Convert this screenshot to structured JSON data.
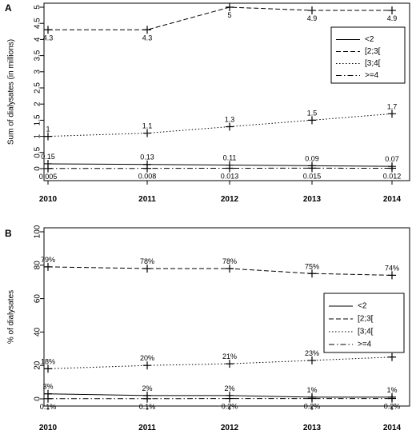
{
  "chart_data": [
    {
      "panel": "A",
      "type": "line",
      "xlabel": "",
      "ylabel": "Sum of dialysates (in millions)",
      "x": [
        "2010",
        "2011",
        "2012",
        "2013",
        "2014"
      ],
      "yticks": [
        "0",
        "0.5",
        "1",
        "1.5",
        "2",
        "2.5",
        "3",
        "3.5",
        "4",
        "4.5",
        "5"
      ],
      "ylim": [
        0,
        5
      ],
      "legend_position": "top-right",
      "series": [
        {
          "name": "<2",
          "dash": "solid",
          "values": [
            0.15,
            0.13,
            0.11,
            0.09,
            0.07
          ],
          "labels": [
            "0.15",
            "0.13",
            "0.11",
            "0.09",
            "0.07"
          ],
          "label_pos": "above"
        },
        {
          "name": "[2;3[",
          "dash": "dashed",
          "values": [
            4.3,
            4.3,
            5,
            4.9,
            4.9
          ],
          "labels": [
            "4.3",
            "4.3",
            "5",
            "4.9",
            "4.9"
          ],
          "label_pos": "below"
        },
        {
          "name": "[3;4[",
          "dash": "dotted",
          "values": [
            1,
            1.1,
            1.3,
            1.5,
            1.7
          ],
          "labels": [
            "1",
            "1.1",
            "1.3",
            "1.5",
            "1.7"
          ],
          "label_pos": "above"
        },
        {
          "name": ">=4",
          "dash": "dotdash",
          "values": [
            0.005,
            0.008,
            0.013,
            0.015,
            0.012
          ],
          "labels": [
            "0.005",
            "0.008",
            "0.013",
            "0.015",
            "0.012"
          ],
          "label_pos": "below"
        }
      ]
    },
    {
      "panel": "B",
      "type": "line",
      "xlabel": "",
      "ylabel": "% of dialysates",
      "x": [
        "2010",
        "2011",
        "2012",
        "2013",
        "2014"
      ],
      "yticks": [
        "0",
        "20",
        "40",
        "60",
        "80",
        "100"
      ],
      "ylim": [
        0,
        100
      ],
      "legend_position": "middle-right",
      "series": [
        {
          "name": "<2",
          "dash": "solid",
          "values": [
            3,
            2,
            2,
            1,
            1
          ],
          "labels": [
            "3%",
            "2%",
            "2%",
            "1%",
            "1%"
          ],
          "label_pos": "above"
        },
        {
          "name": "[2;3[",
          "dash": "dashed",
          "values": [
            79,
            78,
            78,
            75,
            74
          ],
          "labels": [
            "79%",
            "78%",
            "78%",
            "75%",
            "74%"
          ],
          "label_pos": "above"
        },
        {
          "name": "[3;4[",
          "dash": "dotted",
          "values": [
            18,
            20,
            21,
            23,
            25
          ],
          "labels": [
            "18%",
            "20%",
            "21%",
            "23%",
            "25%"
          ],
          "label_pos": "above"
        },
        {
          "name": ">=4",
          "dash": "dotdash",
          "values": [
            0.1,
            0.1,
            0.2,
            0.2,
            0.2
          ],
          "labels": [
            "0.1%",
            "0.1%",
            "0.2%",
            "0.2%",
            "0.2%"
          ],
          "label_pos": "below"
        }
      ]
    }
  ]
}
